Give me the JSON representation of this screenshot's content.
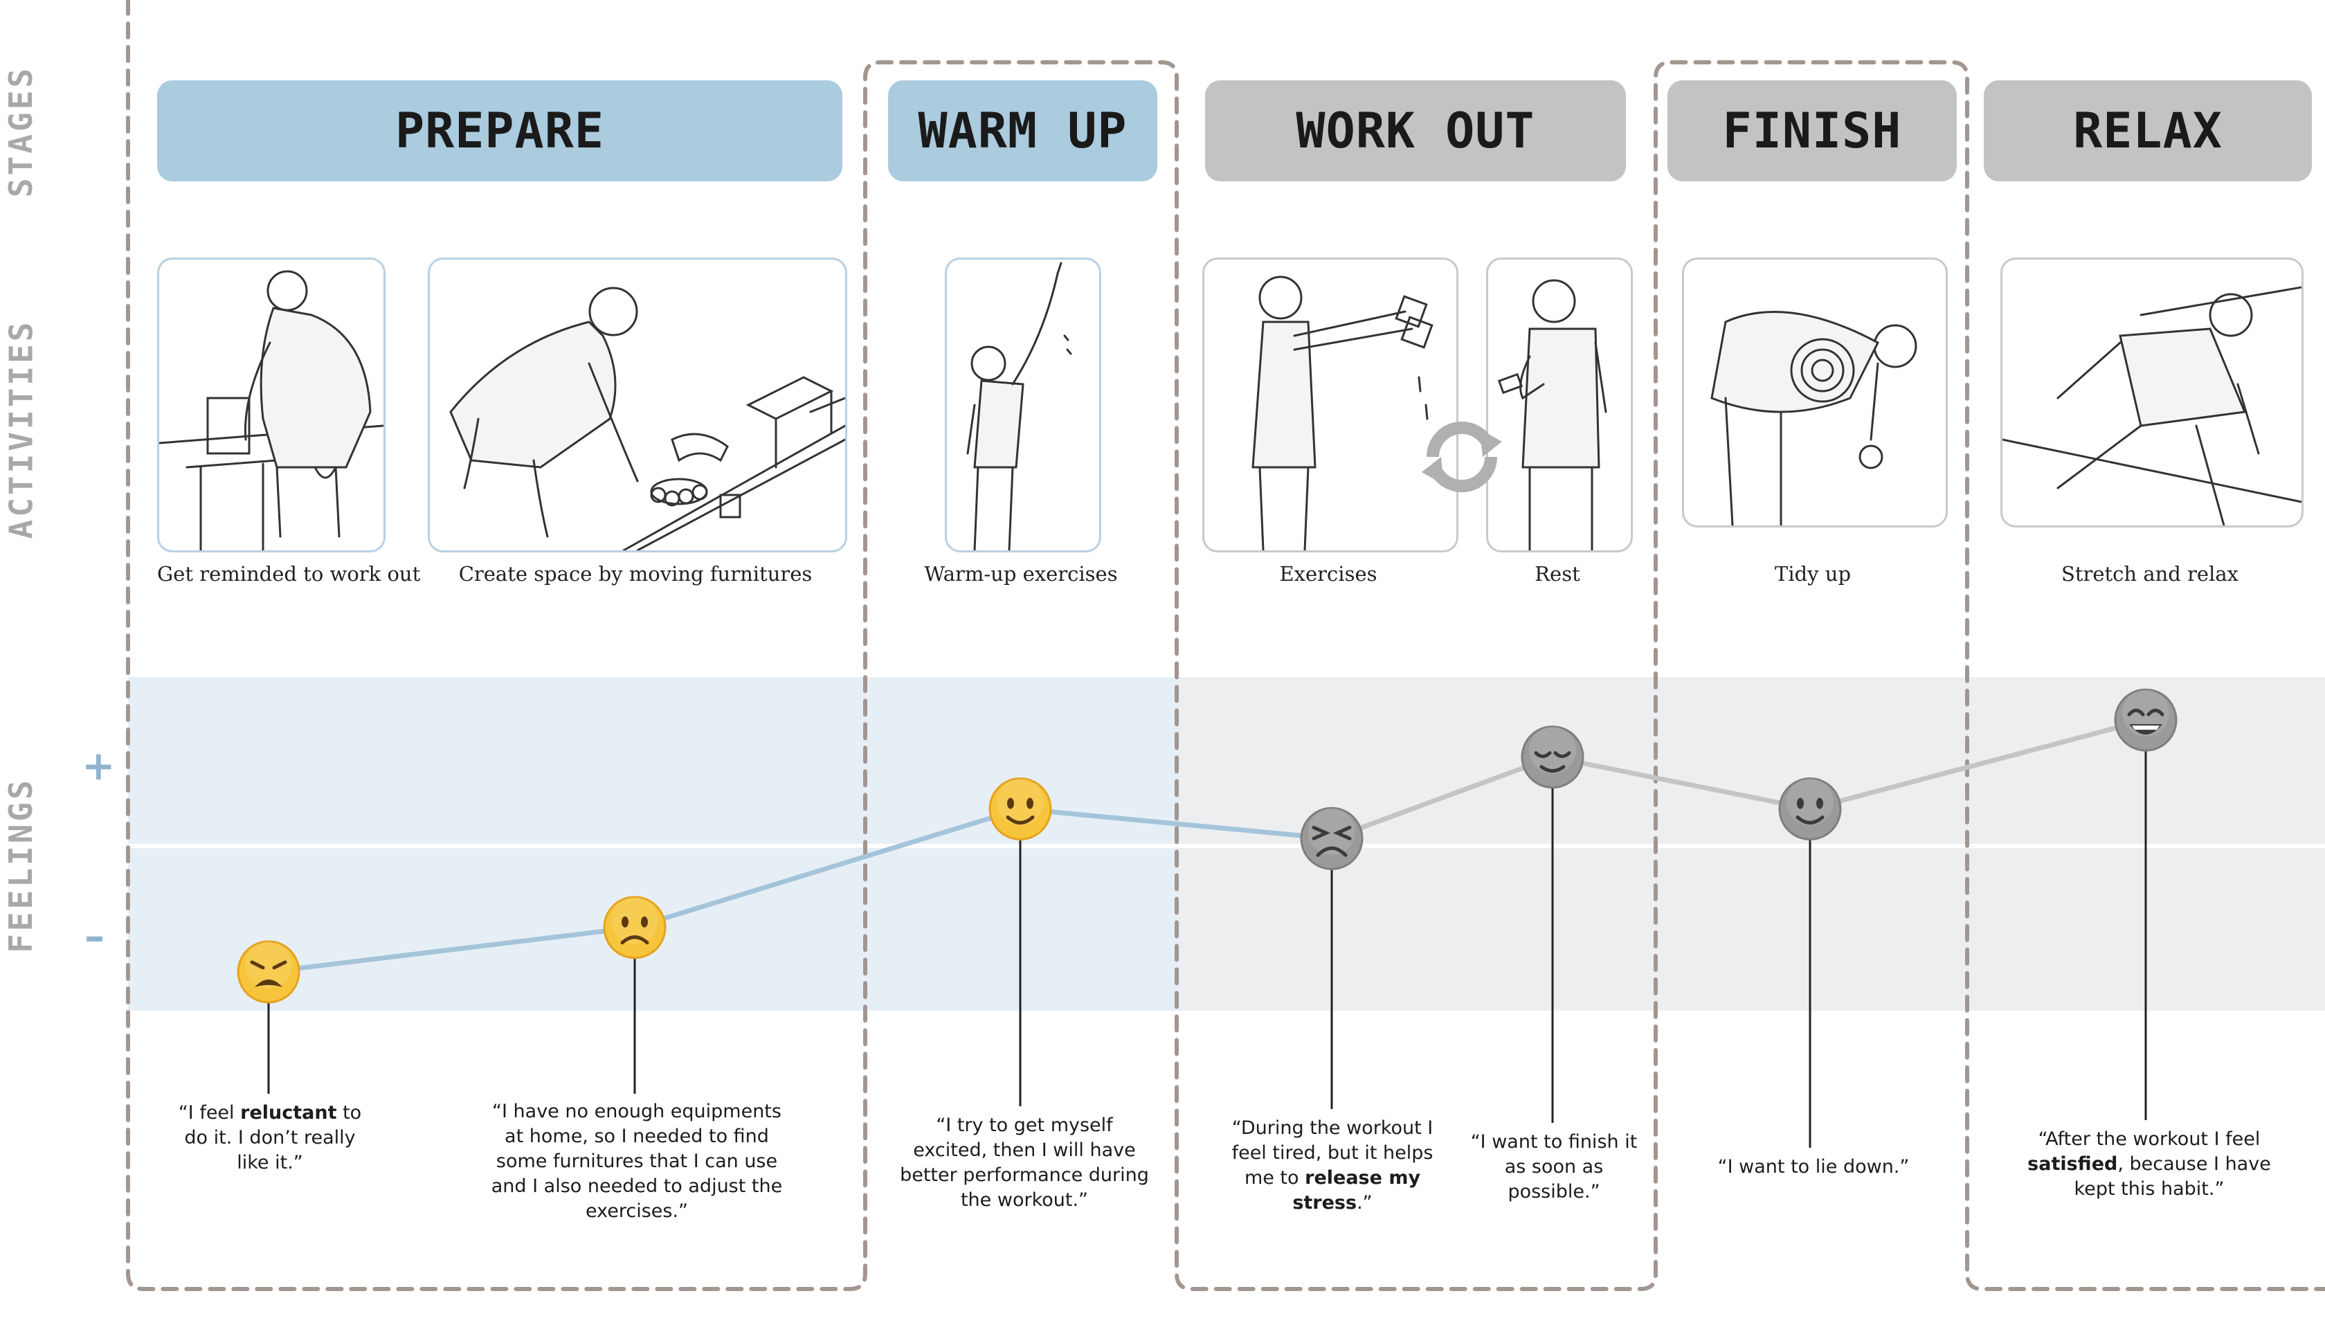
{
  "row_labels": {
    "stages": "STAGES",
    "activities": "ACTIVITIES",
    "feelings": "FEELINGS"
  },
  "feeling_scale": {
    "plus": "+",
    "minus": "–"
  },
  "stages": [
    {
      "label": "PREPARE",
      "color": "#abcbde"
    },
    {
      "label": "WARM UP",
      "color": "#abcbde"
    },
    {
      "label": "WORK OUT",
      "color": "#c3c3c3"
    },
    {
      "label": "FINISH",
      "color": "#c3c3c3"
    },
    {
      "label": "RELAX",
      "color": "#c3c3c3"
    }
  ],
  "activities": [
    {
      "caption": "Get reminded to work out",
      "illustration": "person-at-laptop"
    },
    {
      "caption": "Create space by moving furnitures",
      "illustration": "person-moving-furniture"
    },
    {
      "caption": "Warm-up exercises",
      "illustration": "person-stretching-arm"
    },
    {
      "caption": "Exercises",
      "illustration": "person-lifting-dumbbells"
    },
    {
      "caption": "Rest",
      "illustration": "person-looking-at-phone"
    },
    {
      "caption": "Tidy up",
      "illustration": "person-rolling-mat"
    },
    {
      "caption": "Stretch and relax",
      "illustration": "person-lying-down"
    }
  ],
  "repeat_icon": "refresh-cycle-icon",
  "feelings": [
    {
      "emoji": "weary-face",
      "level": -0.85,
      "quote_pre": "“I feel ",
      "quote_bold": "reluctant",
      "quote_post": " to do it. I don’t really like it.”"
    },
    {
      "emoji": "frowning-face",
      "level": -0.55,
      "quote_pre": "“I have no enough equipments at home, so I needed to find some furnitures that I can use and I also needed to adjust the exercises.”",
      "quote_bold": "",
      "quote_post": ""
    },
    {
      "emoji": "slightly-smiling-face",
      "level": 0.25,
      "quote_pre": "“I try to get myself excited, then I will have better performance during the workout.”",
      "quote_bold": "",
      "quote_post": ""
    },
    {
      "emoji": "persevering-face",
      "level": 0.05,
      "quote_pre": "“During the workout I feel tired, but it helps me to ",
      "quote_bold": "release my stress",
      "quote_post": ".”"
    },
    {
      "emoji": "relieved-face",
      "level": 0.6,
      "quote_pre": "“I want to finish it as soon as possible.”",
      "quote_bold": "",
      "quote_post": ""
    },
    {
      "emoji": "slightly-smiling-face",
      "level": 0.25,
      "quote_pre": "“I want to lie down.”",
      "quote_bold": "",
      "quote_post": ""
    },
    {
      "emoji": "grinning-face",
      "level": 0.85,
      "quote_pre": "“After the workout I feel ",
      "quote_bold": "satisfied",
      "quote_post": ", because I have kept this habit.”"
    }
  ],
  "colors": {
    "positive_band": "#e7eff6",
    "neutral_band": "#edeef0",
    "prepare_line": "#a4c4da",
    "workout_line": "#c4c4c4",
    "dashed_border": "#a29690",
    "emoji_yellow": "#f6c53c",
    "emoji_grey": "#9a9a9a"
  }
}
